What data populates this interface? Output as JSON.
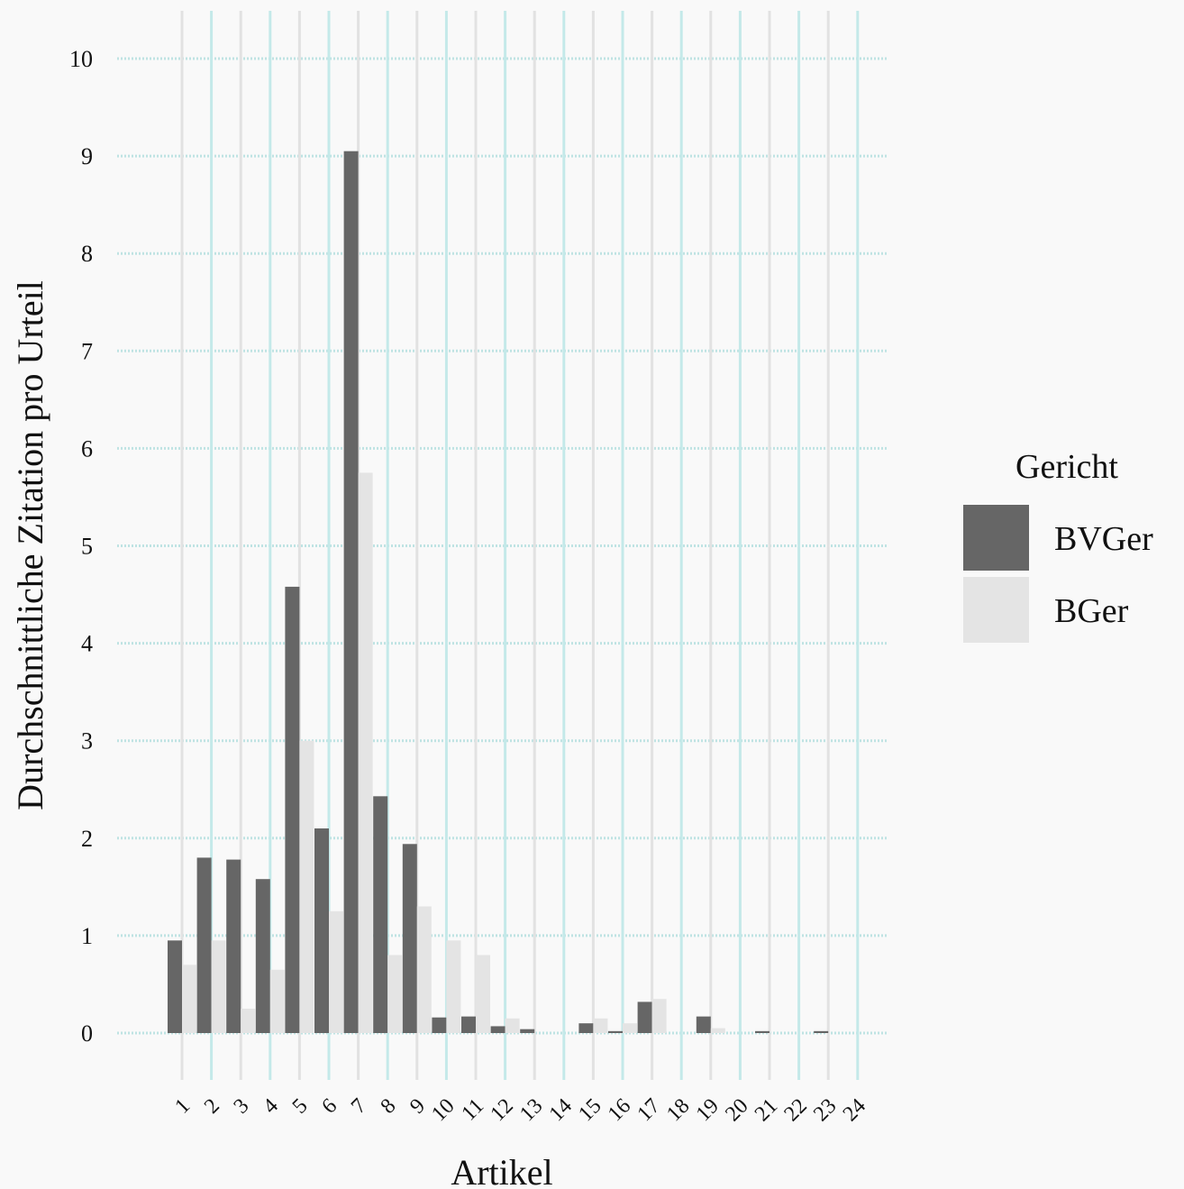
{
  "chart_data": {
    "type": "bar",
    "title": "",
    "xlabel": "Artikel",
    "ylabel": "Durchschnittliche Zitation pro Urteil",
    "ylim": [
      0,
      10
    ],
    "y_ticks": [
      0,
      1,
      2,
      3,
      4,
      5,
      6,
      7,
      8,
      9,
      10
    ],
    "grid": true,
    "categories": [
      "1",
      "2",
      "3",
      "4",
      "5",
      "6",
      "7",
      "8",
      "9",
      "10",
      "11",
      "12",
      "13",
      "14",
      "15",
      "16",
      "17",
      "18",
      "19",
      "20",
      "21",
      "22",
      "23",
      "24"
    ],
    "series": [
      {
        "name": "BVGer",
        "color": "#666666",
        "values": [
          0.95,
          1.8,
          1.78,
          1.58,
          4.58,
          2.1,
          9.05,
          2.43,
          1.94,
          0.16,
          0.17,
          0.07,
          0.04,
          0.0,
          0.1,
          0.02,
          0.32,
          0.0,
          0.17,
          0.0,
          0.02,
          0.0,
          0.02,
          0.0
        ]
      },
      {
        "name": "BGer",
        "color": "#e4e4e4",
        "values": [
          0.7,
          0.95,
          0.25,
          0.65,
          3.0,
          1.25,
          5.75,
          0.8,
          1.3,
          0.95,
          0.8,
          0.15,
          0.0,
          0.0,
          0.15,
          0.1,
          0.35,
          0.0,
          0.05,
          0.0,
          0.0,
          0.0,
          0.0,
          0.0
        ]
      }
    ],
    "legend": {
      "title": "Gericht",
      "position": "right"
    }
  }
}
